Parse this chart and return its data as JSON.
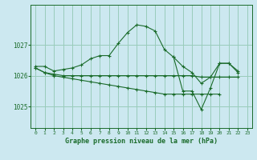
{
  "background_color": "#cce8f0",
  "grid_color": "#99ccbb",
  "line_color": "#1a6b2a",
  "title": "Graphe pression niveau de la mer (hPa)",
  "title_fontsize": 6.0,
  "ylabel_ticks": [
    1025,
    1026,
    1027
  ],
  "ylabel_fontsize": 5.5,
  "xticks": [
    0,
    1,
    2,
    3,
    4,
    5,
    6,
    7,
    8,
    9,
    10,
    11,
    12,
    13,
    14,
    15,
    16,
    17,
    18,
    19,
    20,
    21,
    22,
    23
  ],
  "xtick_fontsize": 4.5,
  "series": [
    {
      "x": [
        0,
        1,
        2,
        3,
        4,
        5,
        6,
        7,
        8,
        9,
        10,
        11,
        12,
        13,
        14,
        15,
        16,
        17,
        18,
        19,
        20,
        21,
        22,
        23
      ],
      "y": [
        1026.3,
        1026.3,
        1026.15,
        1026.2,
        1026.25,
        1026.35,
        1026.55,
        1026.65,
        1026.65,
        1027.05,
        1027.4,
        1027.65,
        1027.6,
        1027.45,
        1026.85,
        1026.6,
        1026.3,
        1026.1,
        1025.75,
        1025.95,
        1026.4,
        1026.4,
        1026.15,
        null
      ]
    },
    {
      "x": [
        0,
        1,
        2,
        3,
        4,
        5,
        6,
        7,
        8,
        9,
        10,
        11,
        12,
        13,
        14,
        15,
        16,
        17,
        18,
        19,
        20,
        21,
        22,
        23
      ],
      "y": [
        1026.25,
        1026.1,
        1026.05,
        1026.0,
        1026.0,
        1026.0,
        1026.0,
        1026.0,
        1026.0,
        1026.0,
        1026.0,
        1026.0,
        1026.0,
        1026.0,
        1026.0,
        1026.0,
        1026.0,
        1026.0,
        1025.95,
        1025.95,
        1025.95,
        1025.95,
        1025.95,
        null
      ]
    },
    {
      "x": [
        0,
        1,
        2,
        3,
        4,
        5,
        6,
        7,
        8,
        9,
        10,
        11,
        12,
        13,
        14,
        15,
        16,
        17,
        18,
        19,
        20,
        21,
        22,
        23
      ],
      "y": [
        1026.25,
        1026.1,
        1026.0,
        1025.95,
        1025.9,
        1025.85,
        1025.8,
        1025.75,
        1025.7,
        1025.65,
        1025.6,
        1025.55,
        1025.5,
        1025.45,
        1025.4,
        1025.4,
        1025.4,
        1025.4,
        1025.4,
        1025.4,
        1025.4,
        null,
        null,
        null
      ]
    },
    {
      "x": [
        15,
        16,
        17,
        18,
        19,
        20,
        21,
        22,
        23
      ],
      "y": [
        1026.6,
        1025.5,
        1025.5,
        1024.9,
        1025.6,
        1026.4,
        1026.4,
        1026.1,
        null
      ]
    }
  ],
  "ylim": [
    1024.3,
    1028.3
  ],
  "xlim": [
    -0.5,
    23.5
  ]
}
